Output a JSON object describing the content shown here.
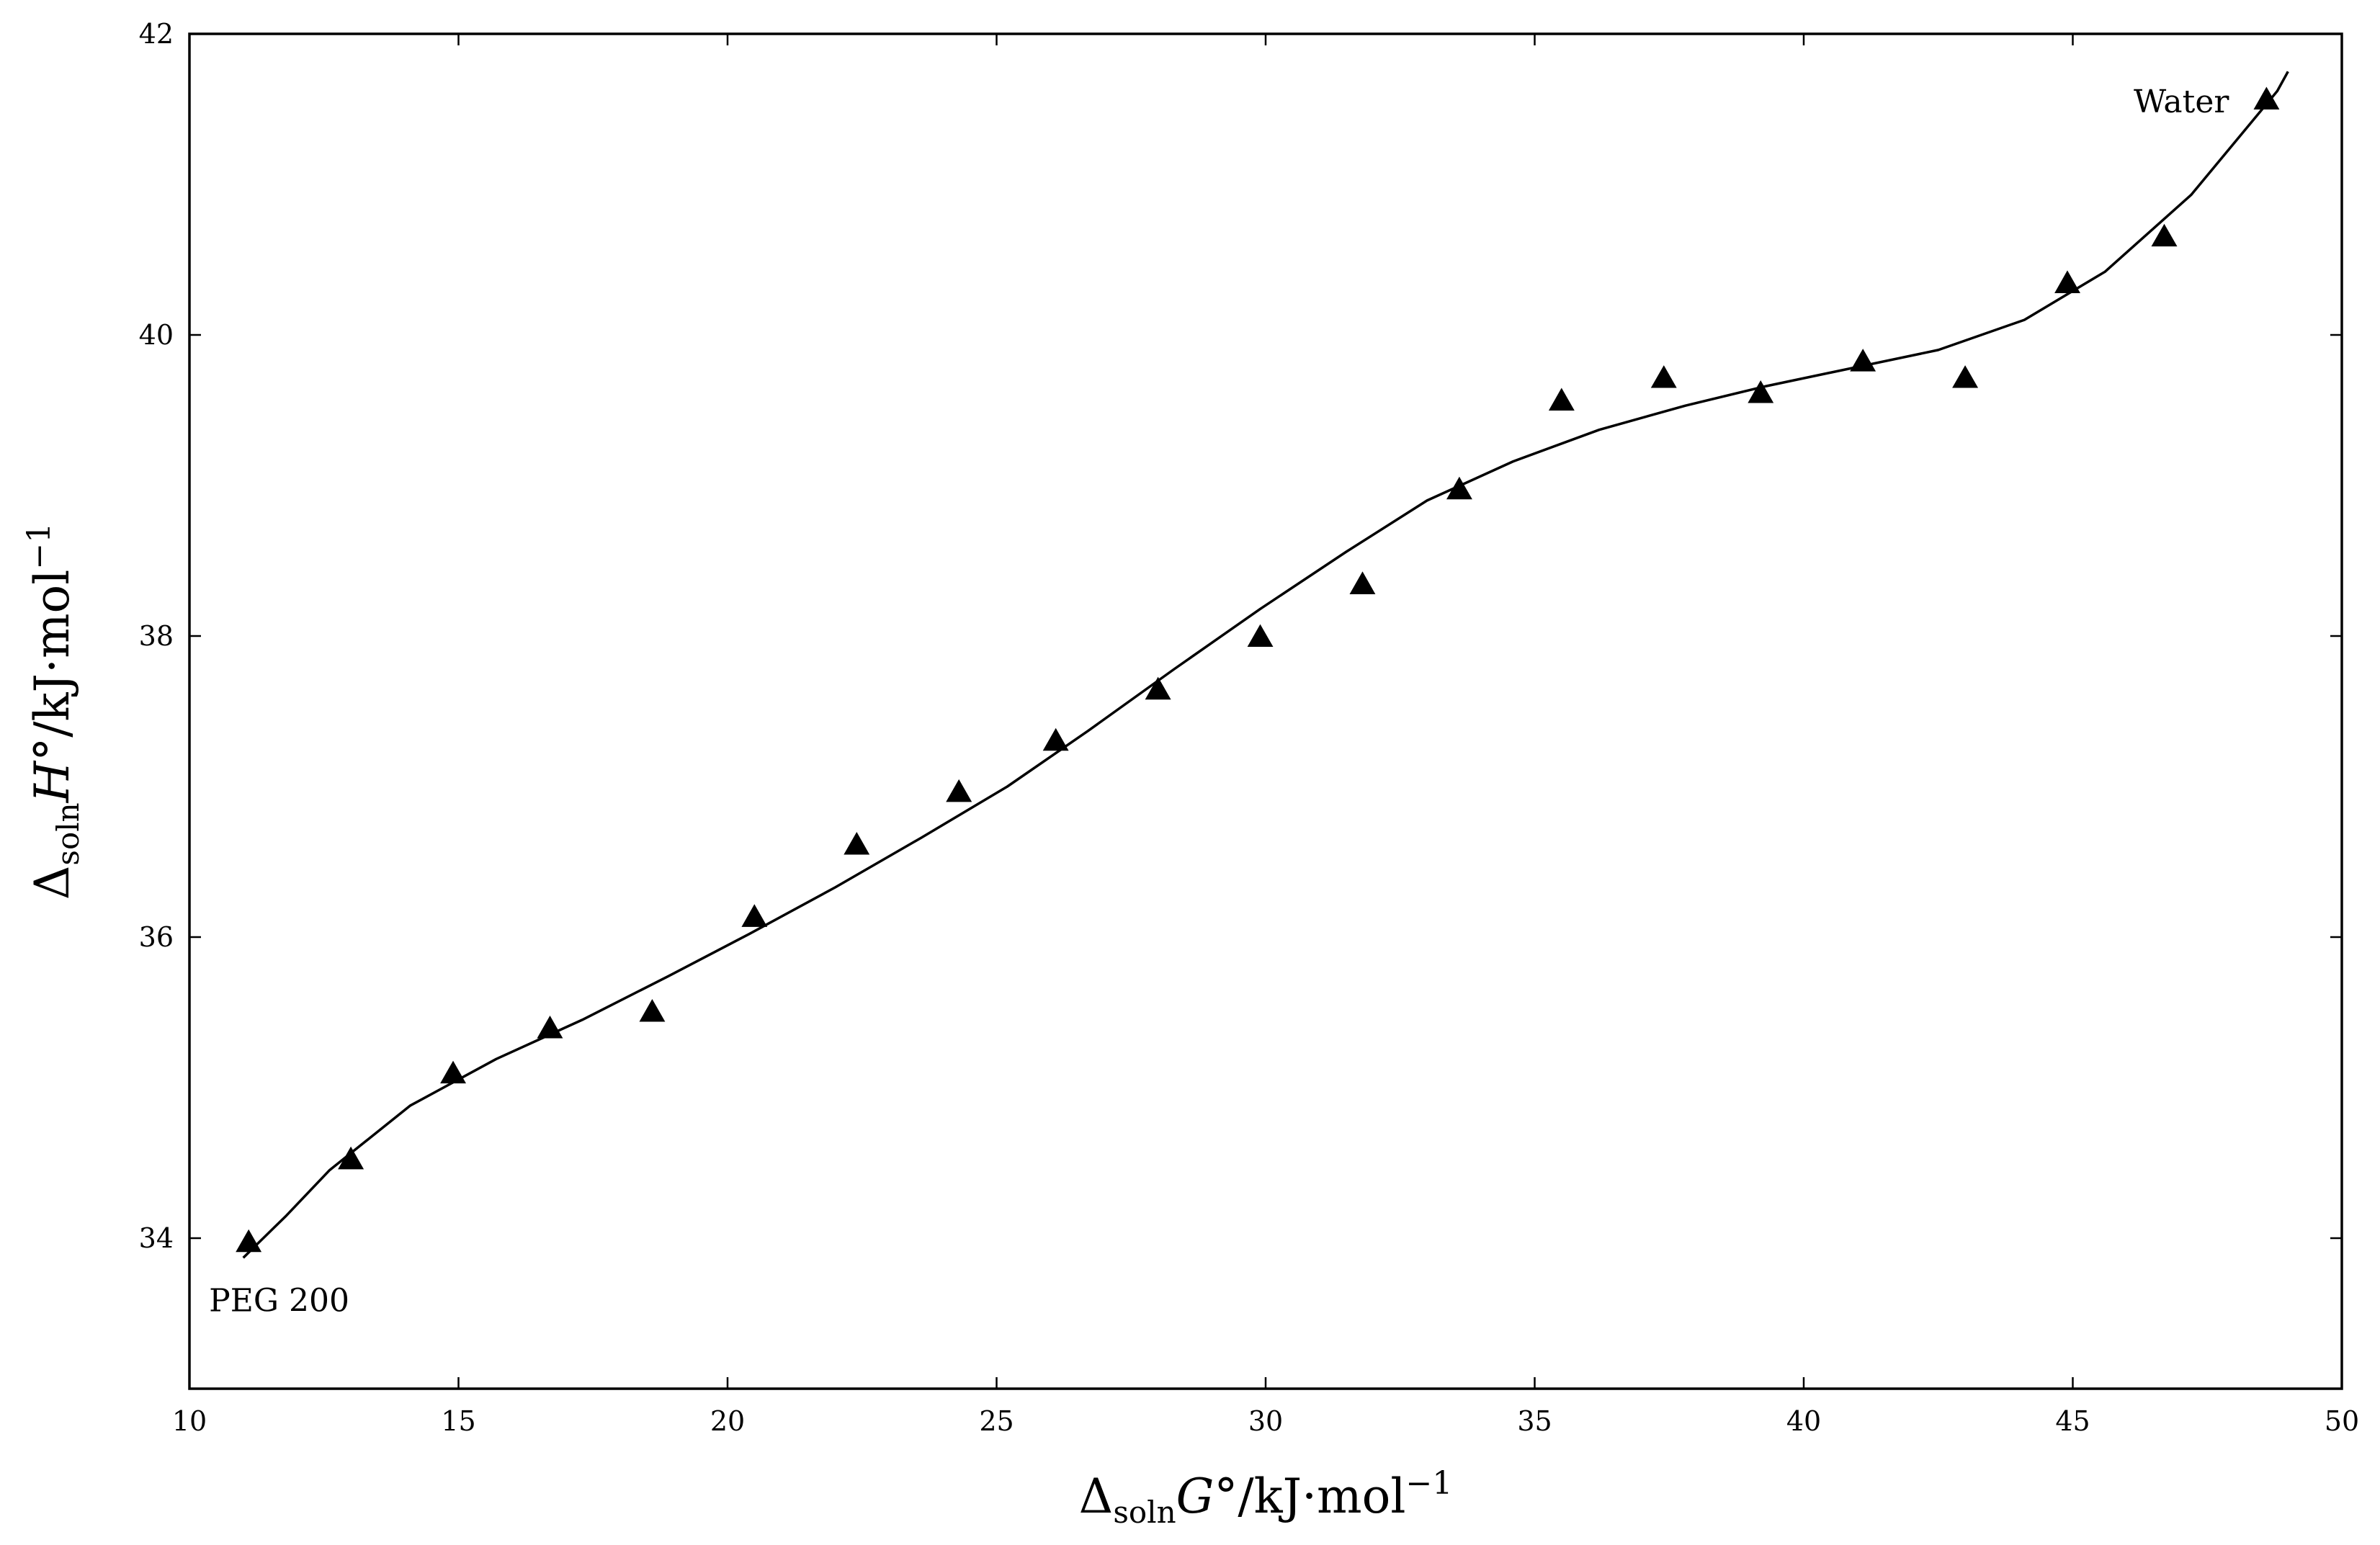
{
  "chart_data": {
    "type": "scatter",
    "xlabel": {
      "symbol": "Δ",
      "subscript": "soln",
      "variable": "G",
      "degree": "°",
      "units": "/kJ·mol",
      "exponent": "−1"
    },
    "ylabel": {
      "symbol": "Δ",
      "subscript": "soln",
      "variable": "H",
      "degree": "°",
      "units": "/kJ·mol",
      "exponent": "−1"
    },
    "xlim": [
      10,
      50
    ],
    "ylim": [
      33,
      42
    ],
    "x_ticks": [
      10,
      15,
      20,
      25,
      30,
      35,
      40,
      45,
      50
    ],
    "y_ticks": [
      34,
      36,
      38,
      40,
      42
    ],
    "grid": false,
    "legend": "none",
    "series": [
      {
        "kind": "points",
        "marker": "triangle",
        "x": [
          11.1,
          13.0,
          14.9,
          16.7,
          18.6,
          20.5,
          22.4,
          24.3,
          26.1,
          28.0,
          29.9,
          31.8,
          33.6,
          35.5,
          37.4,
          39.2,
          41.1,
          43.0,
          44.9,
          46.7,
          48.6
        ],
        "y": [
          33.97,
          34.52,
          35.09,
          35.39,
          35.5,
          36.13,
          36.61,
          36.96,
          37.3,
          37.64,
          37.99,
          38.34,
          38.97,
          39.56,
          39.71,
          39.61,
          39.82,
          39.71,
          40.34,
          40.65,
          41.56
        ]
      },
      {
        "kind": "line",
        "x": [
          11.0,
          11.8,
          12.6,
          14.1,
          15.7,
          17.3,
          18.9,
          20.4,
          22.0,
          23.6,
          25.2,
          26.7,
          28.3,
          29.9,
          31.5,
          33.0,
          34.6,
          36.2,
          37.8,
          39.3,
          40.9,
          42.5,
          44.1,
          45.6,
          47.2,
          48.8,
          49.0
        ],
        "y": [
          33.87,
          34.15,
          34.45,
          34.88,
          35.19,
          35.45,
          35.74,
          36.02,
          36.33,
          36.66,
          37.0,
          37.37,
          37.78,
          38.18,
          38.56,
          38.9,
          39.16,
          39.37,
          39.53,
          39.66,
          39.78,
          39.9,
          40.1,
          40.42,
          40.93,
          41.62,
          41.75
        ]
      }
    ],
    "annotations": [
      {
        "text": "PEG 200",
        "anchor_x": 11.1,
        "anchor_y": 33.97
      },
      {
        "text": "Water",
        "anchor_x": 48.6,
        "anchor_y": 41.56
      }
    ]
  }
}
